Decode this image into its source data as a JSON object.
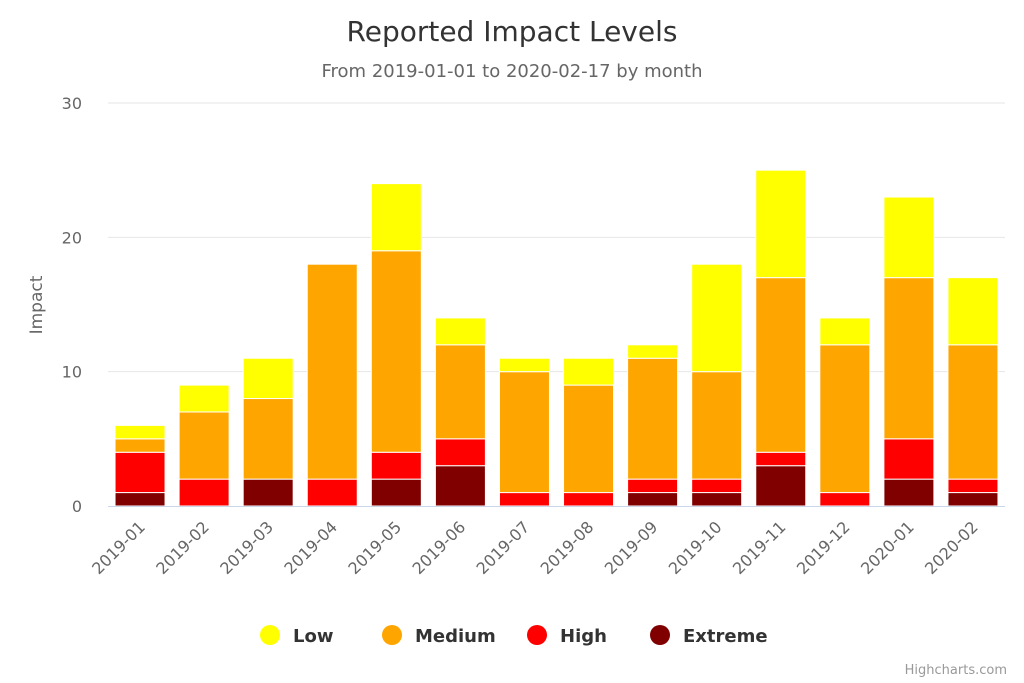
{
  "chart_data": {
    "type": "bar",
    "stacked": true,
    "title": "Reported Impact Levels",
    "subtitle": "From 2019-01-01 to 2020-02-17 by month",
    "ylabel": "Impact",
    "xlabel": "",
    "ylim": [
      0,
      30
    ],
    "yticks": [
      0,
      10,
      20,
      30
    ],
    "grid": true,
    "legend_position": "bottom-center",
    "categories": [
      "2019-01",
      "2019-02",
      "2019-03",
      "2019-04",
      "2019-05",
      "2019-06",
      "2019-07",
      "2019-08",
      "2019-09",
      "2019-10",
      "2019-11",
      "2019-12",
      "2020-01",
      "2020-02"
    ],
    "series": [
      {
        "name": "Low",
        "color": "#ffff00",
        "values": [
          1,
          2,
          3,
          0,
          5,
          2,
          1,
          2,
          1,
          8,
          8,
          2,
          6,
          5
        ]
      },
      {
        "name": "Medium",
        "color": "#ffa500",
        "values": [
          1,
          5,
          6,
          16,
          15,
          7,
          9,
          8,
          9,
          8,
          13,
          11,
          12,
          10
        ]
      },
      {
        "name": "High",
        "color": "#ff0000",
        "values": [
          3,
          2,
          0,
          2,
          2,
          2,
          1,
          1,
          1,
          1,
          1,
          1,
          3,
          1
        ]
      },
      {
        "name": "Extreme",
        "color": "#800000",
        "values": [
          1,
          0,
          2,
          0,
          2,
          3,
          0,
          0,
          1,
          1,
          3,
          0,
          2,
          1
        ]
      }
    ]
  },
  "credits": "Highcharts.com"
}
